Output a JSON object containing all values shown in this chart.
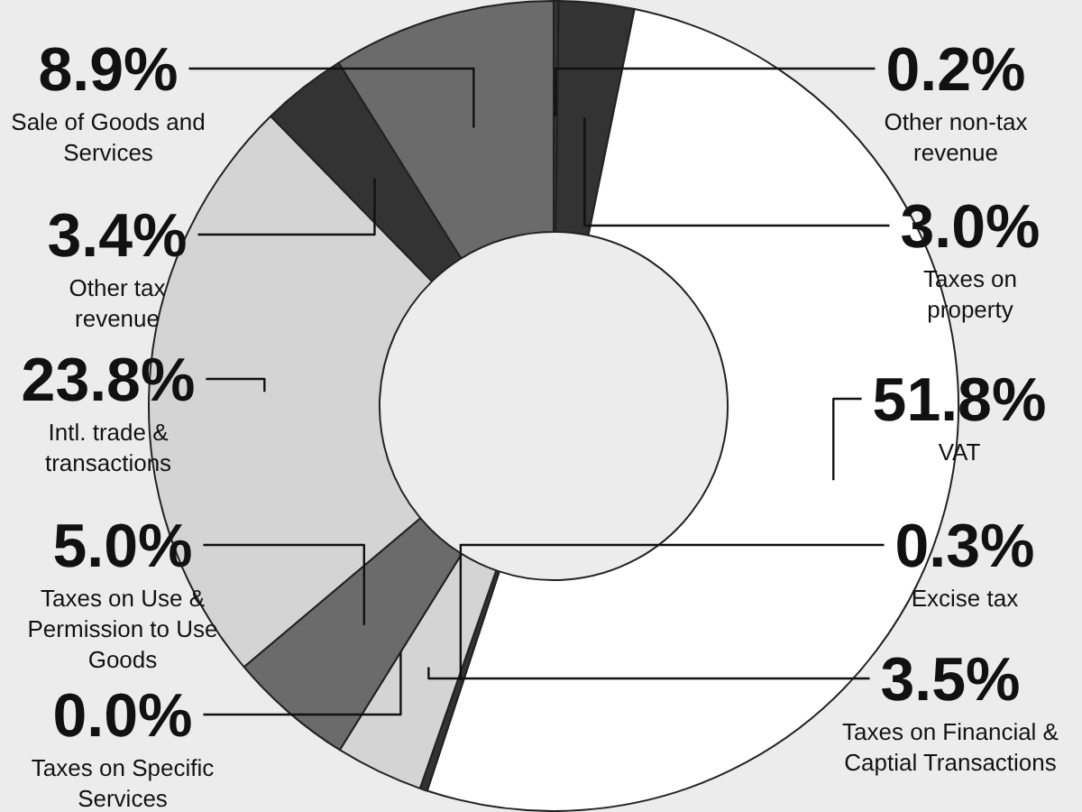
{
  "chart_data": {
    "type": "donut",
    "categories": [
      "Other non-tax revenue",
      "Taxes on property",
      "VAT",
      "Excise tax",
      "Taxes on Financial & Captial Transactions",
      "Taxes on Specific Services",
      "Taxes on Use & Permission to Use Goods",
      "Intl. trade & transactions",
      "Other tax revenue",
      "Sale of Goods and Services"
    ],
    "values": [
      0.2,
      3.0,
      51.8,
      0.3,
      3.5,
      0.0,
      5.0,
      23.8,
      3.4,
      8.9
    ],
    "value_labels": [
      "0.2%",
      "3.0%",
      "51.8%",
      "0.3%",
      "3.5%",
      "0.0%",
      "5.0%",
      "23.8%",
      "3.4%",
      "8.9%"
    ],
    "colors": [
      "#333333",
      "#333333",
      "#ffffff",
      "#333333",
      "#d4d4d4",
      "#6b6b6b",
      "#6b6b6b",
      "#d4d4d4",
      "#333333",
      "#6b6b6b"
    ],
    "legend": false
  }
}
